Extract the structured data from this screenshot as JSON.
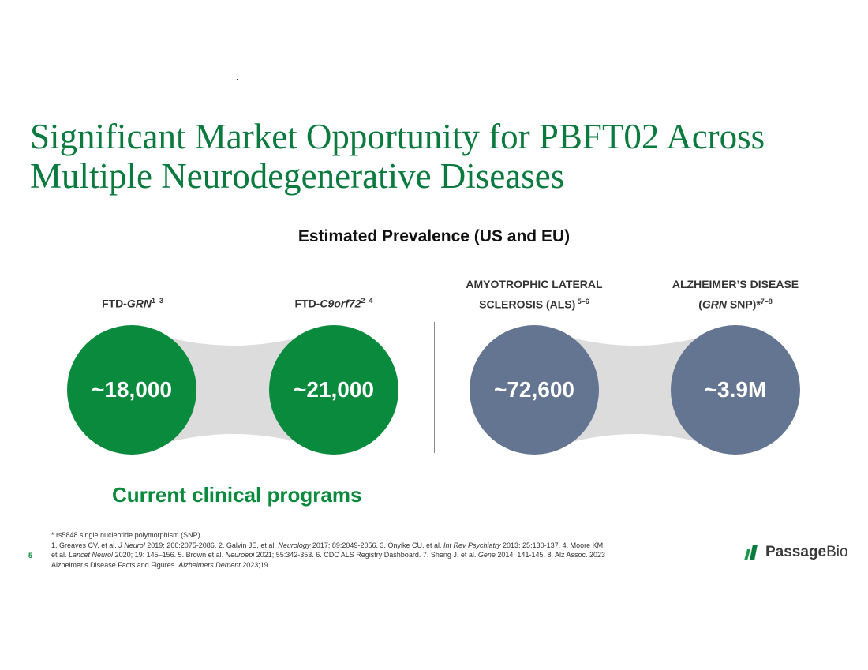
{
  "title": {
    "line1": "Significant Market Opportunity for PBFT02 Across",
    "line2": "Multiple Neurodegenerative Diseases"
  },
  "subtitle": "Estimated Prevalence (US and EU)",
  "diseases": [
    {
      "name_prefix": "FTD-",
      "name_italic": "GRN",
      "sup": "1–3",
      "value": "~18,000"
    },
    {
      "name_prefix": "FTD-",
      "name_italic": "C9orf72",
      "sup": "2–4",
      "value": "~21,000"
    },
    {
      "line1": "AMYOTROPHIC LATERAL",
      "line2": "SCLEROSIS (ALS)",
      "sup": " 5–6",
      "value": "~72,600"
    },
    {
      "line1": "ALZHEIMER’S DISEASE",
      "line2_open": "(",
      "line2_italic": "GRN",
      "line2_rest": " SNP)*",
      "sup": "7–8",
      "value": "~3.9M"
    }
  ],
  "programs_label": "Current clinical programs",
  "footnotes": {
    "snp": "* rs5848 single nucleotide polymorphism (SNP)",
    "r1a": "1. Greaves CV, et al. ",
    "r1j": "J Neurol",
    "r1b": " 2019; 266:2075-2086. 2. Galvin JE, et al. ",
    "r2j": "Neurology",
    "r2b": " 2017; 89:2049-2056. 3. Onyike CU, et al. ",
    "r3j": "Int Rev Psychiatry",
    "r3b": " 2013; 25:130-137. 4. Moore KM,",
    "r4a": "et al. ",
    "r4j": "Lancet Neurol",
    "r4b": " 2020; 19: 145–156. 5. Brown et al. ",
    "r5j": "Neuroepi",
    "r5b": " 2021; 55:342-353. 6. CDC ALS Registry Dashboard. 7. Sheng J, et al. ",
    "r7j": "Gene",
    "r7b": " 2014; 141-145. 8. Alz Assoc. 2023",
    "r8a": "Alzheimer’s Disease Facts and Figures. ",
    "r8j": "Alzheimers Dement",
    "r8b": " 2023;19."
  },
  "page_number": "5",
  "logo": {
    "bold": "Passage",
    "light": "Bio",
    "icon": "passage-bio-logo-icon"
  },
  "colors": {
    "title": "#0a7a3e",
    "green": "#0a8a3c",
    "slate": "#647591",
    "connector": "#dcdcdc"
  }
}
